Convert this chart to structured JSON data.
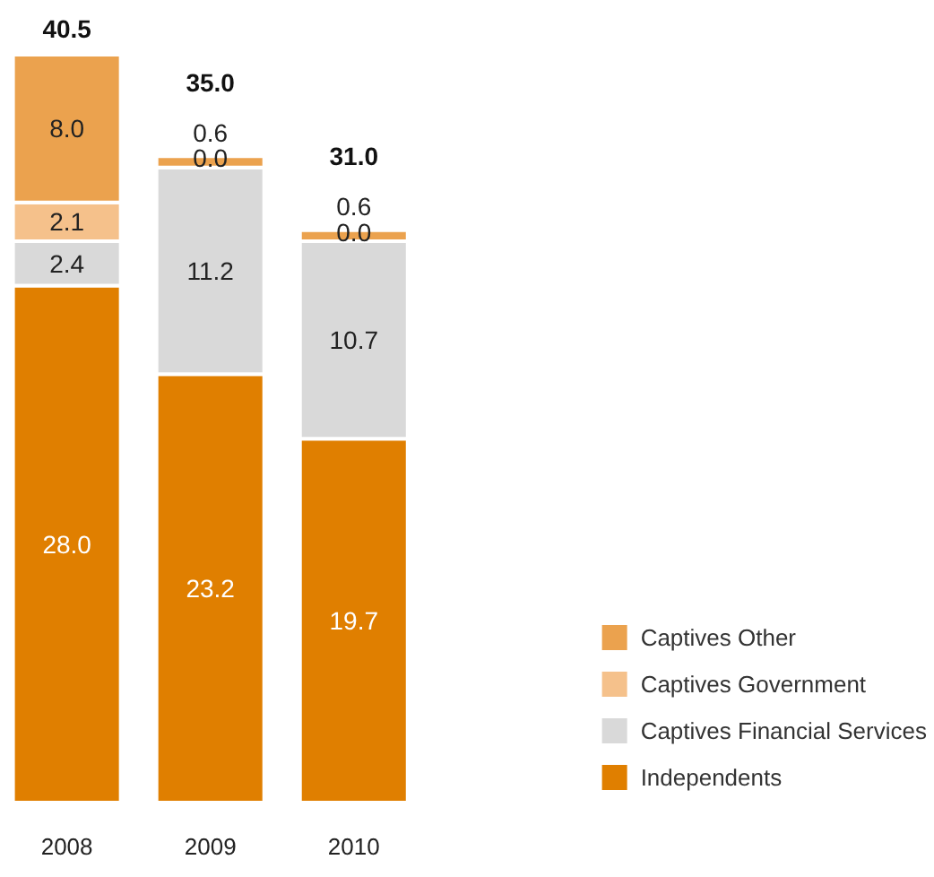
{
  "chart_data": {
    "type": "bar",
    "stacked": true,
    "categories": [
      "2008",
      "2009",
      "2010"
    ],
    "series": [
      {
        "name": "Independents",
        "color": "#e07f00",
        "values": [
          28.0,
          23.2,
          19.7
        ],
        "value_labels": [
          "28.0",
          "23.2",
          "19.7"
        ]
      },
      {
        "name": "Captives Financial Services",
        "color": "#d9d9d9",
        "values": [
          2.4,
          11.2,
          10.7
        ],
        "value_labels": [
          "2.4",
          "11.2",
          "10.7"
        ]
      },
      {
        "name": "Captives Government",
        "color": "#f5c18b",
        "values": [
          2.1,
          0.0,
          0.0
        ],
        "value_labels": [
          "2.1",
          "0.0",
          "0.0"
        ]
      },
      {
        "name": "Captives Other",
        "color": "#eba24e",
        "values": [
          8.0,
          0.6,
          0.6
        ],
        "value_labels": [
          "8.0",
          "0.6",
          "0.6"
        ]
      }
    ],
    "totals": [
      "40.5",
      "35.0",
      "31.0"
    ],
    "legend": "bottom right",
    "grid": false
  }
}
